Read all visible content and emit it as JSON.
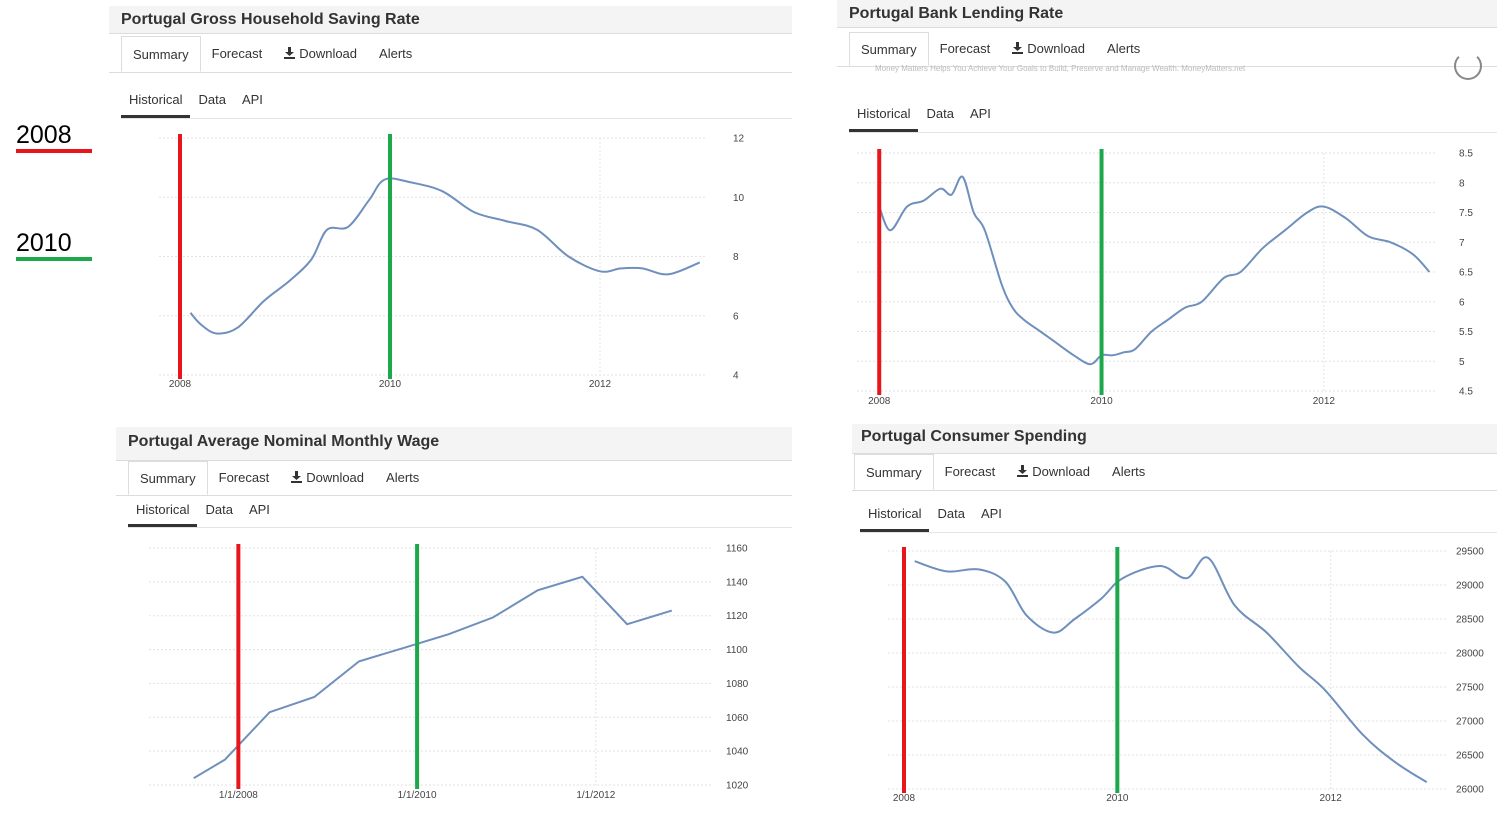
{
  "legend": [
    {
      "label": "2008",
      "color": "#e8161b"
    },
    {
      "label": "2010",
      "color": "#1da84b"
    }
  ],
  "common_tabs": {
    "summary": "Summary",
    "forecast": "Forecast",
    "download": "Download",
    "alerts": "Alerts",
    "historical": "Historical",
    "data": "Data",
    "api": "API"
  },
  "ad_text": "Money Matters Helps You Achieve Your Goals to Build, Preserve and Manage Wealth. MoneyMatters.net",
  "line_color": "#6f8fbd",
  "chart_data": [
    {
      "type": "line",
      "title": "Portugal Gross Household Saving Rate",
      "x": [
        2008.1,
        2008.2,
        2008.35,
        2008.55,
        2008.8,
        2009.05,
        2009.25,
        2009.4,
        2009.6,
        2009.8,
        2009.95,
        2010.2,
        2010.5,
        2010.8,
        2011.1,
        2011.4,
        2011.7,
        2012.0,
        2012.2,
        2012.4,
        2012.65,
        2012.95
      ],
      "y": [
        6.1,
        5.7,
        5.4,
        5.6,
        6.5,
        7.2,
        7.9,
        8.9,
        9.0,
        9.9,
        10.6,
        10.5,
        10.2,
        9.5,
        9.2,
        8.9,
        8.0,
        7.5,
        7.6,
        7.6,
        7.4,
        7.8
      ],
      "xticks": [
        "2008",
        "2010",
        "2012"
      ],
      "xtick_values": [
        2008,
        2010,
        2012
      ],
      "yticks": [
        "4",
        "6",
        "8",
        "10",
        "12"
      ],
      "ytick_values": [
        4,
        6,
        8,
        10,
        12
      ],
      "xlim": [
        2007.8,
        2013.0
      ],
      "ylim": [
        4,
        12
      ],
      "markers": [
        2008,
        2010
      ]
    },
    {
      "type": "line",
      "title": "Portugal Bank Lending Rate",
      "x": [
        2008.0,
        2008.1,
        2008.25,
        2008.4,
        2008.55,
        2008.65,
        2008.75,
        2008.85,
        2008.95,
        2009.1,
        2009.2,
        2009.3,
        2009.45,
        2009.6,
        2009.75,
        2009.9,
        2010.0,
        2010.1,
        2010.2,
        2010.3,
        2010.45,
        2010.6,
        2010.75,
        2010.9,
        2011.1,
        2011.25,
        2011.45,
        2011.65,
        2011.85,
        2012.0,
        2012.2,
        2012.4,
        2012.6,
        2012.8,
        2012.95
      ],
      "y": [
        7.6,
        7.2,
        7.6,
        7.7,
        7.9,
        7.8,
        8.1,
        7.5,
        7.2,
        6.3,
        5.9,
        5.7,
        5.5,
        5.3,
        5.1,
        4.95,
        5.1,
        5.1,
        5.15,
        5.2,
        5.5,
        5.7,
        5.9,
        6.0,
        6.4,
        6.5,
        6.9,
        7.2,
        7.5,
        7.6,
        7.4,
        7.1,
        7.0,
        6.8,
        6.5
      ],
      "xticks": [
        "2008",
        "2010",
        "2012"
      ],
      "xtick_values": [
        2008,
        2010,
        2012
      ],
      "yticks": [
        "4.5",
        "5",
        "5.5",
        "6",
        "6.5",
        "7",
        "7.5",
        "8",
        "8.5"
      ],
      "ytick_values": [
        4.5,
        5,
        5.5,
        6,
        6.5,
        7,
        7.5,
        8,
        8.5
      ],
      "xlim": [
        2007.8,
        2013.0
      ],
      "ylim": [
        4.5,
        8.5
      ],
      "markers": [
        2008,
        2010
      ]
    },
    {
      "type": "line",
      "title": "Portugal Average Nominal Monthly Wage",
      "x": [
        2007.5,
        2007.85,
        2008.35,
        2008.85,
        2009.35,
        2009.85,
        2010.35,
        2010.85,
        2011.35,
        2011.85,
        2012.35,
        2012.85
      ],
      "y": [
        1024,
        1035,
        1063,
        1072,
        1093,
        1101,
        1109,
        1119,
        1135,
        1143,
        1115,
        1123
      ],
      "xticks": [
        "1/1/2008",
        "1/1/2010",
        "1/1/2012"
      ],
      "xtick_values": [
        2008,
        2010,
        2012
      ],
      "yticks": [
        "1020",
        "1040",
        "1060",
        "1080",
        "1100",
        "1120",
        "1140",
        "1160"
      ],
      "ytick_values": [
        1020,
        1040,
        1060,
        1080,
        1100,
        1120,
        1140,
        1160
      ],
      "xlim": [
        2007.0,
        2013.3
      ],
      "ylim": [
        1020,
        1160
      ],
      "markers": [
        2008,
        2010
      ]
    },
    {
      "type": "line",
      "title": "Portugal Consumer Spending",
      "x": [
        2008.1,
        2008.4,
        2008.7,
        2008.95,
        2009.15,
        2009.4,
        2009.6,
        2009.85,
        2010.05,
        2010.4,
        2010.65,
        2010.85,
        2011.1,
        2011.4,
        2011.7,
        2011.95,
        2012.3,
        2012.6,
        2012.9
      ],
      "y": [
        29350,
        29200,
        29230,
        29050,
        28550,
        28300,
        28500,
        28800,
        29100,
        29280,
        29100,
        29400,
        28700,
        28300,
        27800,
        27450,
        26800,
        26400,
        26100
      ],
      "xticks": [
        "2008",
        "2010",
        "2012"
      ],
      "xtick_values": [
        2008,
        2010,
        2012
      ],
      "yticks": [
        "26000",
        "26500",
        "27000",
        "27500",
        "28000",
        "28500",
        "29000",
        "29500"
      ],
      "ytick_values": [
        26000,
        26500,
        27000,
        27500,
        28000,
        28500,
        29000,
        29500
      ],
      "xlim": [
        2007.85,
        2013.1
      ],
      "ylim": [
        26000,
        29500
      ],
      "markers": [
        2008,
        2010
      ]
    }
  ]
}
